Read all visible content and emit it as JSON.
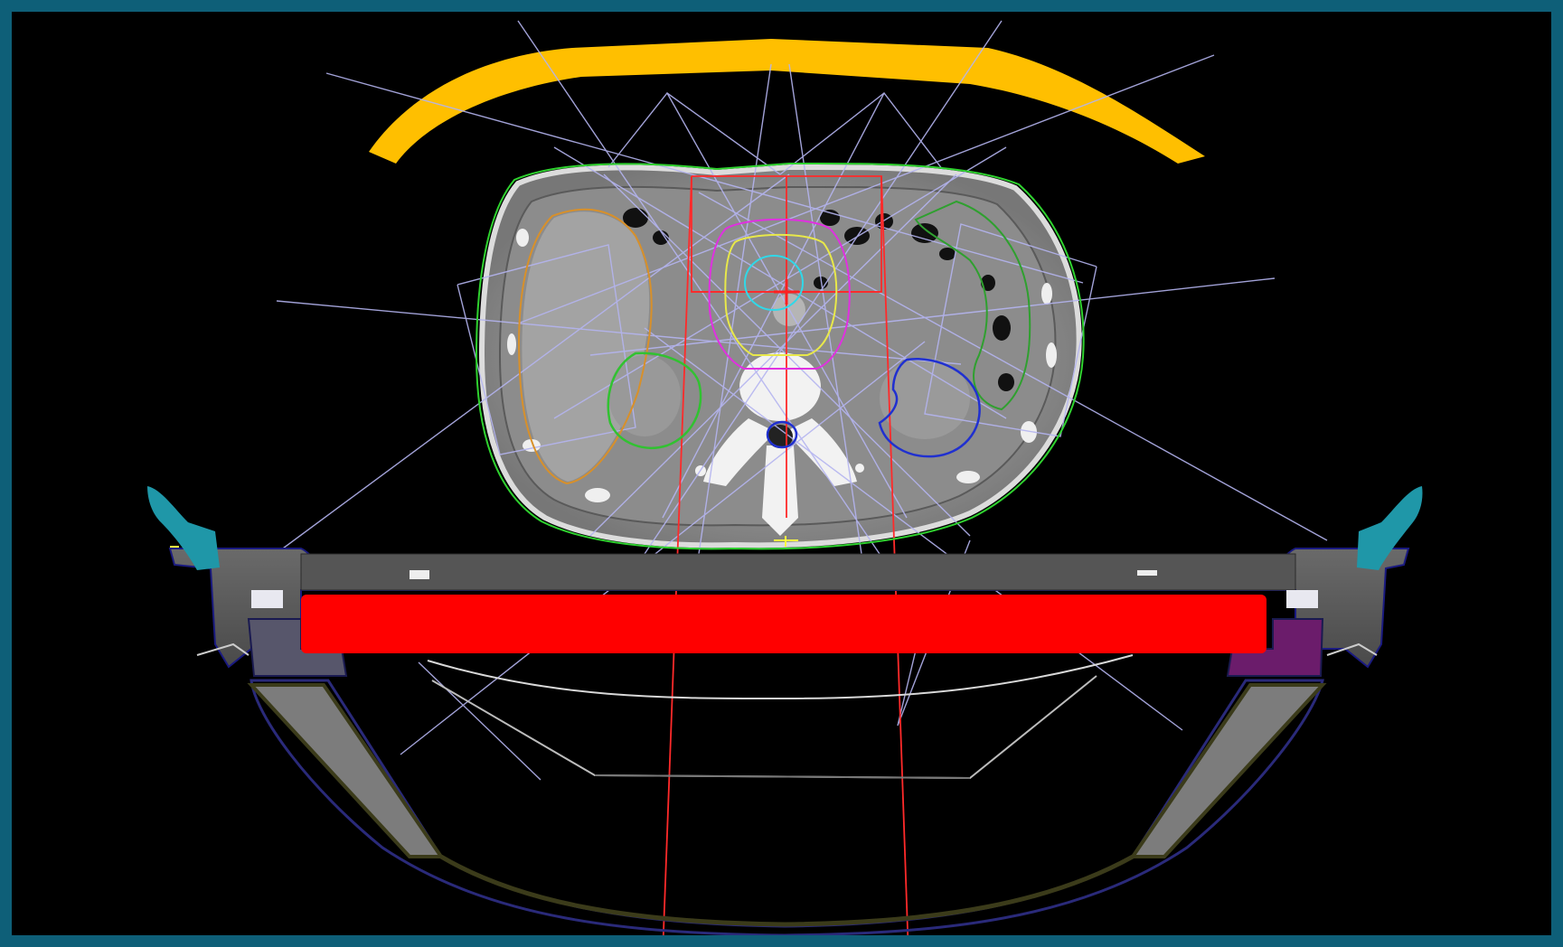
{
  "viewer": {
    "view": "axial-ct-slice",
    "border_color": "#0e5f78",
    "background_color": "#000000"
  },
  "overlay_colors": {
    "beam_rays": "#b4b4f0",
    "field_edge": "#ff2a2a",
    "isocenter": "#ff2020",
    "body_contour": "#2fd22f",
    "liver_contour": "#d8902a",
    "right_kidney_contour": "#31c231",
    "left_kidney_contour": "#2030d0",
    "spinal_cord_contour": "#2030d0",
    "ptv_contour": "#e030e0",
    "ctv_contour": "#e8e84a",
    "gtv_contour": "#30d8e8",
    "bowel_contour": "#2fa02f",
    "applicator_top": "#ffbf00",
    "couch_insert": "#ff0000",
    "immobilization_clips": "#1f97a8",
    "couch_left_block": "#57566b",
    "couch_right_block": "#6b1c6b",
    "couch_shell": "#7a7a7a"
  }
}
